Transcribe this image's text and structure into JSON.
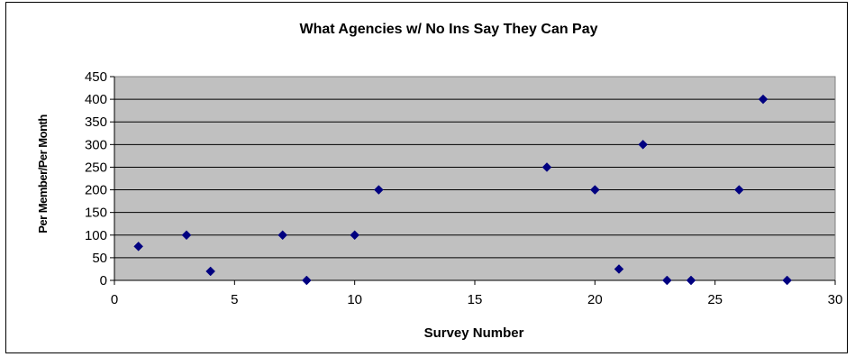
{
  "chart_data": {
    "type": "scatter",
    "title": "What Agencies w/ No Ins Say They Can Pay",
    "xlabel": "Survey Number",
    "ylabel": "Per Member/Per Month",
    "xlim": [
      0,
      30
    ],
    "ylim": [
      0,
      450
    ],
    "x_ticks": [
      "0",
      "5",
      "10",
      "15",
      "20",
      "25",
      "30"
    ],
    "y_ticks": [
      "0",
      "50",
      "100",
      "150",
      "200",
      "250",
      "300",
      "350",
      "400",
      "450"
    ],
    "grid": "horizontal",
    "legend": "none",
    "plot_background": "#c0c0c0",
    "marker_color": "#000080",
    "series": [
      {
        "x": [
          1,
          3,
          4,
          7,
          8,
          10,
          11,
          18,
          20,
          21,
          22,
          23,
          24,
          26,
          27,
          28
        ],
        "y": [
          75,
          100,
          20,
          100,
          0,
          100,
          200,
          250,
          200,
          25,
          300,
          0,
          0,
          200,
          400,
          0
        ]
      }
    ]
  }
}
